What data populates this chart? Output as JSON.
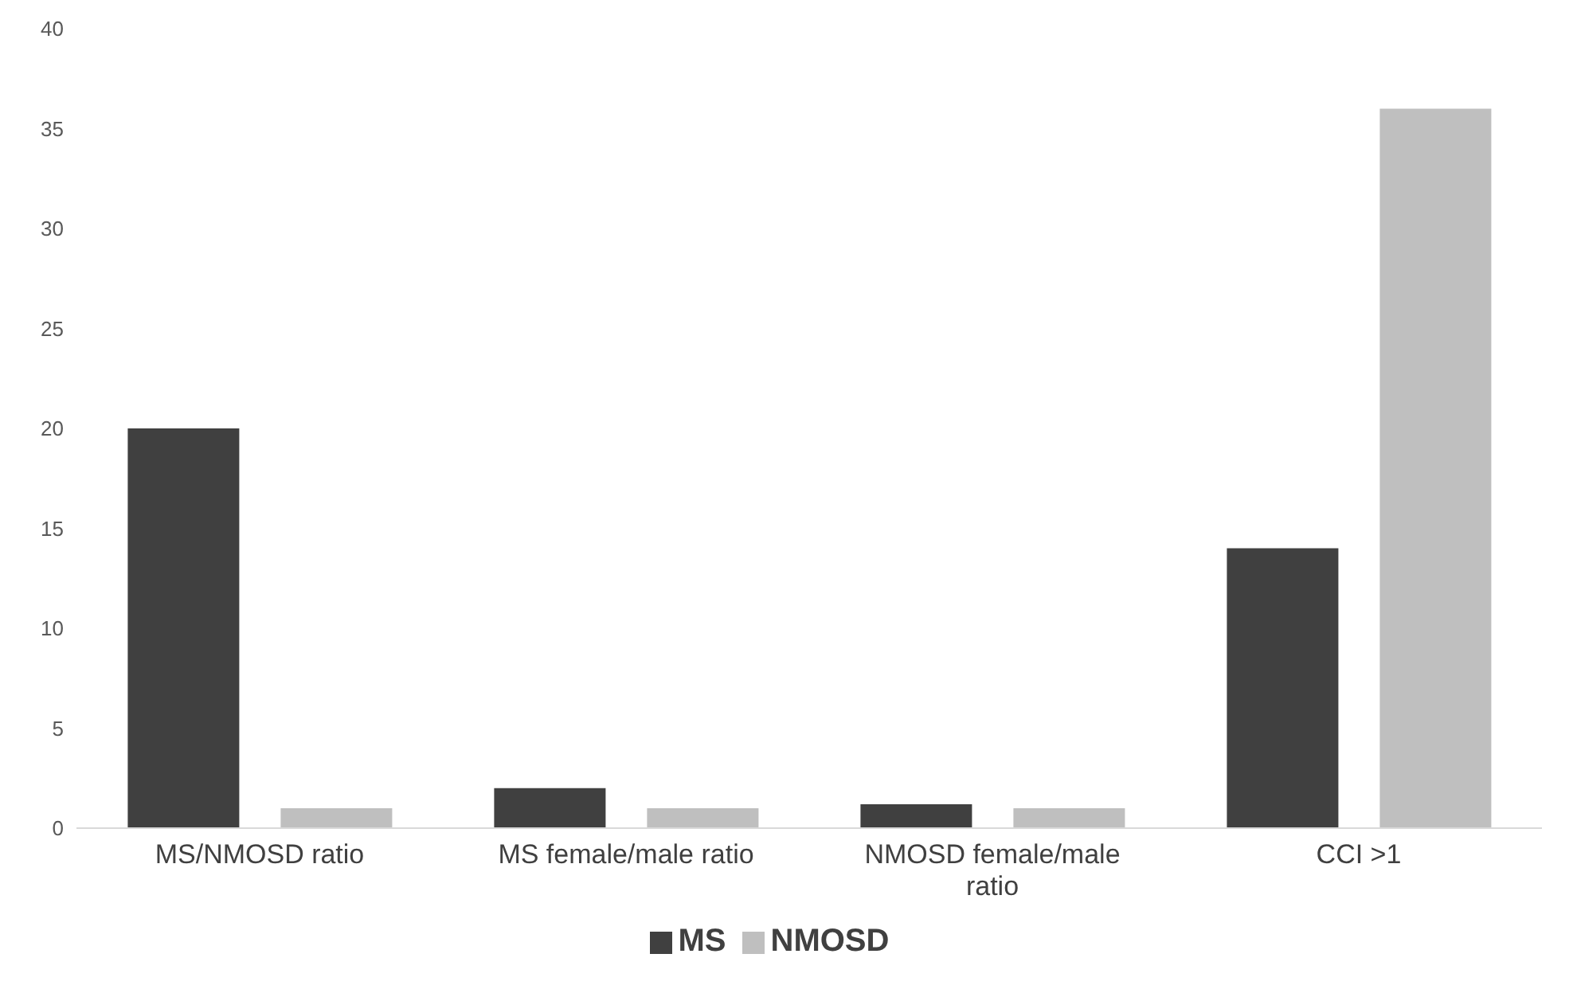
{
  "chart_data": {
    "type": "bar",
    "categories": [
      "MS/NMOSD ratio",
      "MS female/male ratio",
      "NMOSD female/male ratio",
      "CCI >1"
    ],
    "series": [
      {
        "name": "MS",
        "color": "#404040",
        "values": [
          20,
          2,
          1.2,
          14
        ]
      },
      {
        "name": "NMOSD",
        "color": "#bfbfbf",
        "values": [
          1,
          1,
          1,
          36
        ]
      }
    ],
    "ylim": [
      0,
      40
    ],
    "yticks": [
      0,
      5,
      10,
      15,
      20,
      25,
      30,
      35,
      40
    ],
    "grid": false,
    "legend": "bottom"
  }
}
